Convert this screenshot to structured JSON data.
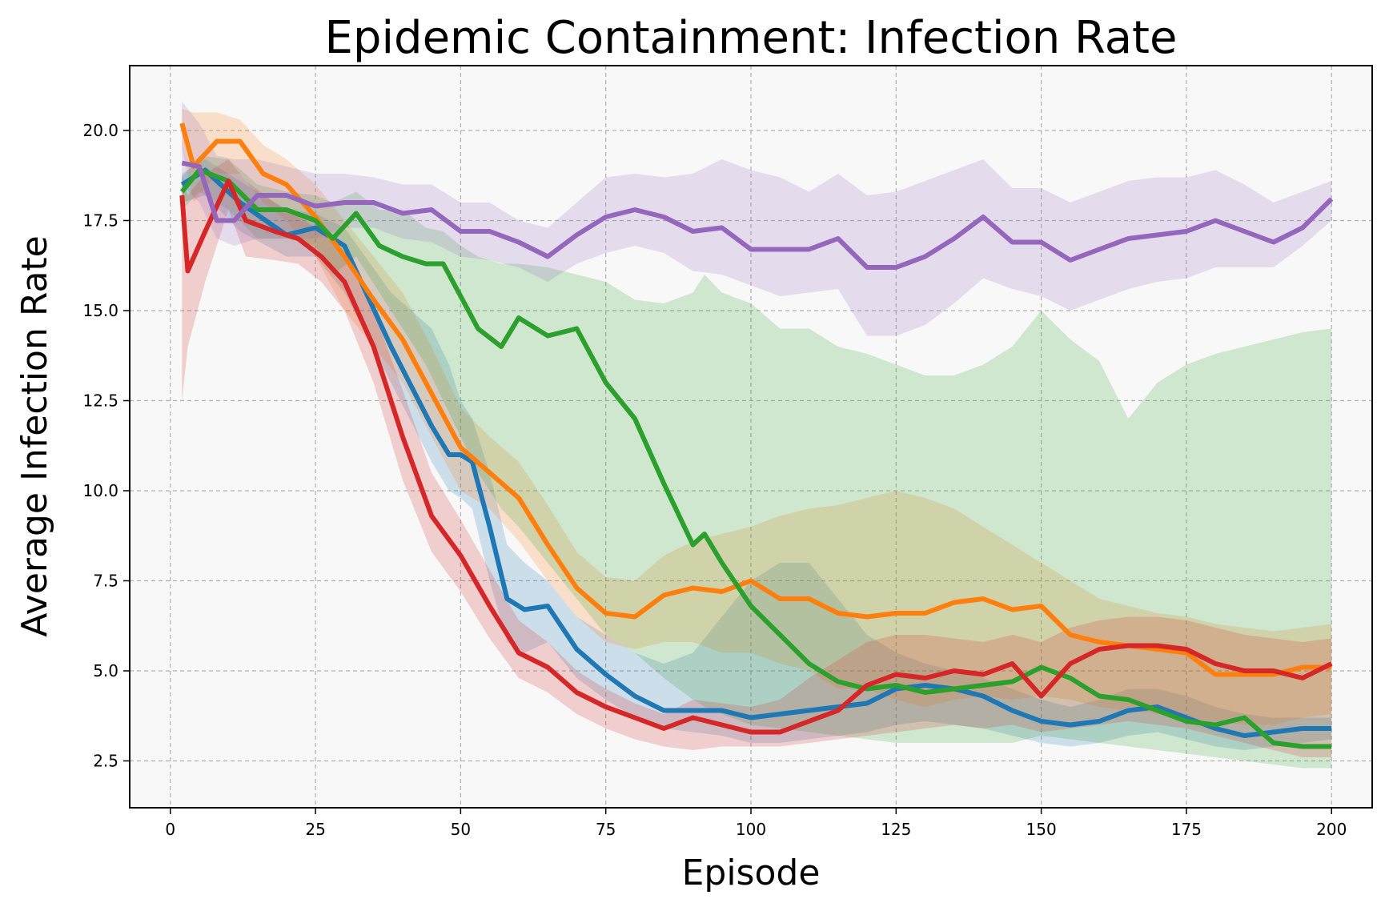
{
  "chart_data": {
    "type": "line",
    "title": "Epidemic Containment: Infection Rate",
    "xlabel": "Episode",
    "ylabel": "Average Infection Rate",
    "xlim": [
      -7,
      207
    ],
    "ylim": [
      1.2,
      21.8
    ],
    "xticks": [
      0,
      25,
      50,
      75,
      100,
      125,
      150,
      175,
      200
    ],
    "yticks": [
      2.5,
      5.0,
      7.5,
      10.0,
      12.5,
      15.0,
      17.5,
      20.0
    ],
    "ytick_labels": [
      "2.5",
      "5.0",
      "7.5",
      "10.0",
      "12.5",
      "15.0",
      "17.5",
      "20.0"
    ],
    "grid": true,
    "legend": "none",
    "series": [
      {
        "name": "series-blue",
        "color": "#1f77b4",
        "x": [
          2,
          6,
          12,
          20,
          25,
          30,
          38,
          45,
          48,
          50,
          52,
          55,
          58,
          61,
          65,
          70,
          75,
          80,
          85,
          90,
          95,
          100,
          105,
          110,
          115,
          120,
          125,
          130,
          135,
          140,
          145,
          150,
          155,
          160,
          165,
          170,
          175,
          180,
          185,
          190,
          195,
          200
        ],
        "y": [
          18.5,
          18.9,
          18.0,
          17.1,
          17.3,
          16.8,
          14.0,
          11.8,
          11.0,
          11.0,
          10.8,
          9.0,
          7.0,
          6.7,
          6.8,
          5.6,
          4.9,
          4.3,
          3.9,
          3.9,
          3.9,
          3.7,
          3.8,
          3.9,
          4.0,
          4.1,
          4.5,
          4.6,
          4.5,
          4.3,
          3.9,
          3.6,
          3.5,
          3.6,
          3.9,
          4.0,
          3.7,
          3.4,
          3.2,
          3.3,
          3.4,
          3.4
        ],
        "upper": [
          18.8,
          19.2,
          18.6,
          17.8,
          17.7,
          17.3,
          15.5,
          14.5,
          13.5,
          12.5,
          12.0,
          10.5,
          8.5,
          8.0,
          7.5,
          6.5,
          6.0,
          5.5,
          5.2,
          5.5,
          6.5,
          7.5,
          8.0,
          8.0,
          7.0,
          6.0,
          5.5,
          5.2,
          5.0,
          4.8,
          4.5,
          4.2,
          4.0,
          4.2,
          4.5,
          4.5,
          4.3,
          4.0,
          3.8,
          3.7,
          3.7,
          3.7
        ],
        "lower": [
          18.0,
          18.2,
          17.2,
          16.5,
          16.5,
          15.5,
          13.0,
          10.8,
          10.0,
          9.8,
          9.5,
          7.5,
          5.8,
          5.5,
          5.8,
          4.8,
          4.2,
          3.7,
          3.4,
          3.3,
          3.2,
          3.0,
          3.0,
          3.1,
          3.2,
          3.3,
          3.5,
          3.6,
          3.5,
          3.4,
          3.2,
          3.0,
          2.9,
          3.0,
          3.2,
          3.3,
          3.1,
          2.9,
          2.8,
          2.9,
          3.0,
          3.1
        ]
      },
      {
        "name": "series-orange",
        "color": "#ff7f0e",
        "x": [
          2,
          4,
          8,
          12,
          16,
          20,
          25,
          30,
          35,
          40,
          45,
          50,
          55,
          60,
          65,
          70,
          75,
          80,
          85,
          90,
          95,
          100,
          105,
          110,
          115,
          120,
          125,
          130,
          135,
          140,
          145,
          150,
          155,
          160,
          165,
          170,
          175,
          180,
          185,
          190,
          195,
          200
        ],
        "y": [
          20.2,
          19.0,
          19.7,
          19.7,
          18.8,
          18.5,
          17.6,
          16.5,
          15.3,
          14.2,
          12.7,
          11.2,
          10.5,
          9.8,
          8.5,
          7.3,
          6.6,
          6.5,
          7.1,
          7.3,
          7.2,
          7.5,
          7.0,
          7.0,
          6.6,
          6.5,
          6.6,
          6.6,
          6.9,
          7.0,
          6.7,
          6.8,
          6.0,
          5.8,
          5.7,
          5.6,
          5.5,
          4.9,
          4.9,
          4.9,
          5.1,
          5.1
        ],
        "upper": [
          20.6,
          20.5,
          20.5,
          20.3,
          19.6,
          19.2,
          18.5,
          17.5,
          16.5,
          15.5,
          14.0,
          12.3,
          11.5,
          10.8,
          9.6,
          8.3,
          7.6,
          7.5,
          8.2,
          8.6,
          8.8,
          9.0,
          9.3,
          9.5,
          9.6,
          9.8,
          10.0,
          9.8,
          9.5,
          9.0,
          8.5,
          8.0,
          7.5,
          7.0,
          6.8,
          6.6,
          6.5,
          6.3,
          6.2,
          6.1,
          6.2,
          6.3
        ],
        "lower": [
          19.5,
          18.0,
          18.8,
          18.8,
          18.0,
          17.5,
          16.5,
          15.0,
          14.0,
          13.0,
          11.5,
          10.0,
          9.5,
          8.6,
          7.5,
          6.5,
          5.8,
          5.6,
          5.8,
          5.8,
          5.5,
          5.5,
          5.2,
          5.0,
          4.5,
          4.5,
          4.2,
          4.0,
          4.2,
          4.3,
          4.2,
          4.3,
          4.2,
          4.0,
          3.9,
          3.8,
          3.7,
          3.6,
          3.5,
          3.5,
          3.7,
          3.8
        ]
      },
      {
        "name": "series-green",
        "color": "#2ca02c",
        "x": [
          2,
          5,
          10,
          15,
          20,
          25,
          28,
          32,
          36,
          40,
          44,
          47,
          50,
          53,
          57,
          60,
          65,
          70,
          75,
          80,
          85,
          90,
          92,
          95,
          100,
          105,
          110,
          115,
          120,
          125,
          130,
          135,
          140,
          145,
          150,
          155,
          160,
          165,
          170,
          175,
          180,
          185,
          190,
          195,
          200
        ],
        "y": [
          18.3,
          18.9,
          18.6,
          17.8,
          17.8,
          17.5,
          17.0,
          17.7,
          16.8,
          16.5,
          16.3,
          16.3,
          15.4,
          14.5,
          14.0,
          14.8,
          14.3,
          14.5,
          13.0,
          12.0,
          10.2,
          8.5,
          8.8,
          8.0,
          6.8,
          6.0,
          5.2,
          4.7,
          4.5,
          4.6,
          4.4,
          4.5,
          4.6,
          4.7,
          5.1,
          4.8,
          4.3,
          4.2,
          3.9,
          3.6,
          3.5,
          3.7,
          3.0,
          2.9,
          2.9
        ],
        "upper": [
          18.7,
          19.3,
          19.2,
          18.5,
          18.3,
          18.2,
          18.0,
          18.3,
          17.8,
          17.8,
          17.3,
          17.2,
          16.8,
          16.5,
          16.3,
          16.3,
          16.2,
          16.0,
          15.8,
          15.3,
          15.2,
          15.5,
          16.0,
          15.5,
          15.2,
          14.5,
          14.5,
          14.0,
          13.8,
          13.5,
          13.2,
          13.2,
          13.5,
          14.0,
          15.0,
          14.2,
          13.6,
          12.0,
          13.0,
          13.5,
          13.8,
          14.0,
          14.2,
          14.4,
          14.5
        ],
        "lower": [
          17.8,
          18.3,
          17.8,
          17.0,
          17.0,
          16.8,
          16.0,
          16.5,
          15.5,
          14.5,
          13.5,
          12.5,
          11.5,
          10.5,
          9.5,
          9.0,
          8.0,
          7.0,
          6.0,
          5.5,
          4.8,
          4.2,
          4.0,
          3.8,
          3.5,
          3.4,
          3.3,
          3.2,
          3.1,
          3.0,
          3.0,
          3.0,
          3.0,
          3.0,
          3.2,
          3.1,
          3.0,
          2.9,
          2.8,
          2.7,
          2.6,
          2.5,
          2.4,
          2.3,
          2.3
        ]
      },
      {
        "name": "series-red",
        "color": "#d62728",
        "x": [
          2,
          3,
          6,
          10,
          13,
          18,
          22,
          26,
          30,
          35,
          40,
          45,
          50,
          55,
          60,
          65,
          70,
          75,
          80,
          85,
          90,
          95,
          100,
          105,
          110,
          115,
          120,
          125,
          130,
          135,
          140,
          145,
          150,
          155,
          160,
          165,
          170,
          175,
          180,
          185,
          190,
          195,
          200
        ],
        "y": [
          18.2,
          16.1,
          17.2,
          18.6,
          17.5,
          17.2,
          17.0,
          16.5,
          15.8,
          14.0,
          11.5,
          9.3,
          8.2,
          6.8,
          5.5,
          5.1,
          4.4,
          4.0,
          3.7,
          3.4,
          3.7,
          3.5,
          3.3,
          3.3,
          3.6,
          3.9,
          4.6,
          4.9,
          4.8,
          5.0,
          4.9,
          5.2,
          4.3,
          5.2,
          5.6,
          5.7,
          5.7,
          5.6,
          5.2,
          5.0,
          5.0,
          4.8,
          5.2
        ],
        "upper": [
          18.8,
          18.2,
          18.8,
          19.2,
          18.6,
          18.0,
          17.6,
          17.2,
          16.5,
          15.0,
          12.8,
          10.5,
          9.2,
          7.8,
          6.4,
          5.8,
          5.0,
          4.5,
          4.1,
          3.8,
          4.2,
          4.1,
          4.0,
          4.2,
          4.8,
          5.3,
          5.8,
          6.0,
          6.0,
          5.9,
          5.8,
          6.0,
          5.8,
          6.2,
          6.4,
          6.5,
          6.5,
          6.4,
          6.2,
          6.0,
          5.9,
          5.8,
          5.9
        ],
        "lower": [
          12.5,
          14.0,
          15.8,
          17.8,
          16.5,
          16.4,
          16.3,
          15.8,
          15.0,
          13.0,
          10.3,
          8.3,
          7.2,
          5.9,
          4.8,
          4.4,
          3.8,
          3.4,
          3.1,
          2.9,
          2.8,
          2.9,
          2.9,
          2.9,
          3.0,
          3.1,
          3.2,
          3.3,
          3.4,
          3.5,
          3.4,
          3.5,
          3.3,
          3.4,
          3.5,
          3.6,
          3.5,
          3.4,
          3.2,
          3.0,
          2.8,
          2.6,
          2.6
        ]
      },
      {
        "name": "series-purple",
        "color": "#9467bd",
        "x": [
          2,
          5,
          8,
          11,
          15,
          20,
          25,
          30,
          35,
          40,
          45,
          50,
          55,
          60,
          65,
          70,
          75,
          80,
          85,
          90,
          95,
          100,
          105,
          110,
          115,
          120,
          125,
          130,
          135,
          140,
          145,
          150,
          155,
          160,
          165,
          170,
          175,
          180,
          185,
          190,
          195,
          200
        ],
        "y": [
          19.1,
          19.0,
          17.5,
          17.5,
          18.2,
          18.2,
          17.9,
          18.0,
          18.0,
          17.7,
          17.8,
          17.2,
          17.2,
          16.9,
          16.5,
          17.1,
          17.6,
          17.8,
          17.6,
          17.2,
          17.3,
          16.7,
          16.7,
          16.7,
          17.0,
          16.2,
          16.2,
          16.5,
          17.0,
          17.6,
          16.9,
          16.9,
          16.4,
          16.7,
          17.0,
          17.1,
          17.2,
          17.5,
          17.2,
          16.9,
          17.3,
          18.1
        ],
        "upper": [
          20.8,
          20.2,
          19.3,
          19.2,
          19.2,
          19.0,
          18.8,
          18.8,
          18.7,
          18.5,
          18.5,
          18.0,
          18.0,
          17.5,
          17.3,
          18.0,
          18.7,
          18.8,
          18.7,
          18.8,
          19.2,
          18.9,
          18.7,
          18.3,
          18.8,
          18.2,
          18.3,
          18.6,
          18.9,
          19.2,
          18.4,
          18.4,
          18.0,
          18.3,
          18.6,
          18.7,
          18.7,
          18.9,
          18.5,
          18.0,
          18.3,
          18.6
        ],
        "lower": [
          18.5,
          18.0,
          17.0,
          16.8,
          17.0,
          17.0,
          17.0,
          17.3,
          17.3,
          17.0,
          16.9,
          16.5,
          16.4,
          16.2,
          15.8,
          16.3,
          16.6,
          16.8,
          16.6,
          16.1,
          16.0,
          15.7,
          15.4,
          15.5,
          15.6,
          14.3,
          14.3,
          14.6,
          15.2,
          15.9,
          15.6,
          15.4,
          15.0,
          15.3,
          15.6,
          15.8,
          15.9,
          16.2,
          16.2,
          16.2,
          16.8,
          17.5
        ]
      }
    ]
  }
}
